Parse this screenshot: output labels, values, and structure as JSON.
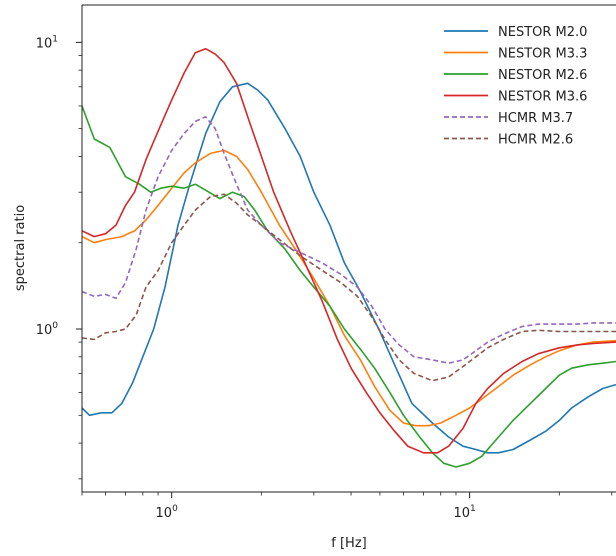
{
  "chart_data": {
    "type": "line",
    "title": "",
    "xlabel": "f [Hz]",
    "ylabel": "spectral ratio",
    "xscale": "log",
    "yscale": "log",
    "xlim": [
      0.5,
      31
    ],
    "ylim": [
      0.27,
      13.5
    ],
    "grid": false,
    "legend_position": "top-right",
    "x_ticks": [
      {
        "value": 1,
        "base": "10",
        "exp": "0"
      },
      {
        "value": 10,
        "base": "10",
        "exp": "1"
      }
    ],
    "y_ticks": [
      {
        "value": 1,
        "base": "10",
        "exp": "0"
      },
      {
        "value": 10,
        "base": "10",
        "exp": "1"
      }
    ],
    "series": [
      {
        "name": "NESTOR M2.0",
        "color": "#1f77b4",
        "dashed": false,
        "x": [
          0.5,
          0.53,
          0.58,
          0.63,
          0.68,
          0.74,
          0.8,
          0.87,
          0.95,
          1.05,
          1.15,
          1.3,
          1.45,
          1.6,
          1.8,
          1.95,
          2.1,
          2.4,
          2.7,
          3.0,
          3.4,
          3.8,
          4.3,
          5.0,
          5.7,
          6.4,
          7.5,
          8.5,
          9.5,
          10.5,
          11.5,
          12.5,
          14.0,
          16.0,
          18.0,
          20.0,
          22.0,
          25.0,
          28.0,
          31.0
        ],
        "y": [
          0.53,
          0.5,
          0.51,
          0.51,
          0.55,
          0.65,
          0.8,
          1.0,
          1.4,
          2.3,
          3.2,
          4.8,
          6.2,
          7.0,
          7.2,
          6.8,
          6.3,
          5.0,
          4.0,
          3.0,
          2.3,
          1.7,
          1.35,
          0.98,
          0.72,
          0.55,
          0.47,
          0.42,
          0.39,
          0.38,
          0.37,
          0.37,
          0.38,
          0.41,
          0.44,
          0.48,
          0.53,
          0.58,
          0.62,
          0.64
        ]
      },
      {
        "name": "NESTOR M3.3",
        "color": "#ff7f0e",
        "dashed": false,
        "x": [
          0.5,
          0.55,
          0.6,
          0.68,
          0.75,
          0.82,
          0.9,
          1.0,
          1.1,
          1.2,
          1.35,
          1.5,
          1.65,
          1.8,
          2.0,
          2.3,
          2.6,
          3.0,
          3.4,
          3.8,
          4.3,
          4.8,
          5.4,
          6.0,
          6.6,
          7.3,
          8.0,
          9.0,
          10.0,
          11.0,
          12.5,
          14.0,
          16.0,
          18.0,
          20.0,
          23.0,
          26.0,
          31.0
        ],
        "y": [
          2.1,
          2.0,
          2.05,
          2.1,
          2.2,
          2.4,
          2.7,
          3.1,
          3.5,
          3.8,
          4.1,
          4.2,
          4.0,
          3.6,
          3.0,
          2.3,
          1.9,
          1.5,
          1.2,
          0.95,
          0.78,
          0.63,
          0.52,
          0.47,
          0.46,
          0.46,
          0.47,
          0.5,
          0.53,
          0.57,
          0.63,
          0.69,
          0.75,
          0.8,
          0.84,
          0.88,
          0.9,
          0.91
        ]
      },
      {
        "name": "NESTOR M2.6",
        "color": "#2ca02c",
        "dashed": false,
        "x": [
          0.5,
          0.55,
          0.62,
          0.7,
          0.78,
          0.85,
          0.92,
          1.0,
          1.1,
          1.2,
          1.3,
          1.45,
          1.6,
          1.75,
          1.9,
          2.1,
          2.4,
          2.7,
          3.0,
          3.4,
          3.8,
          4.3,
          4.8,
          5.4,
          6.0,
          6.8,
          7.5,
          8.2,
          9.0,
          10.0,
          11.0,
          12.5,
          14.0,
          16.0,
          18.0,
          20.0,
          22.0,
          25.0,
          28.0,
          31.0
        ],
        "y": [
          6.0,
          4.6,
          4.3,
          3.4,
          3.2,
          3.0,
          3.1,
          3.15,
          3.1,
          3.2,
          3.05,
          2.85,
          3.0,
          2.9,
          2.6,
          2.2,
          1.9,
          1.6,
          1.4,
          1.2,
          1.0,
          0.85,
          0.73,
          0.6,
          0.5,
          0.42,
          0.37,
          0.34,
          0.33,
          0.34,
          0.36,
          0.42,
          0.48,
          0.55,
          0.62,
          0.69,
          0.73,
          0.75,
          0.76,
          0.77
        ]
      },
      {
        "name": "NESTOR M3.6",
        "color": "#d62728",
        "dashed": false,
        "x": [
          0.5,
          0.55,
          0.6,
          0.65,
          0.7,
          0.75,
          0.82,
          0.9,
          1.0,
          1.1,
          1.2,
          1.3,
          1.4,
          1.5,
          1.65,
          1.8,
          2.0,
          2.2,
          2.5,
          2.8,
          3.2,
          3.6,
          4.0,
          4.5,
          5.0,
          5.6,
          6.2,
          7.0,
          7.8,
          8.5,
          9.5,
          10.5,
          11.5,
          13.0,
          15.0,
          17.0,
          20.0,
          23.0,
          26.0,
          31.0
        ],
        "y": [
          2.2,
          2.1,
          2.15,
          2.3,
          2.7,
          3.0,
          3.9,
          4.9,
          6.3,
          7.8,
          9.2,
          9.5,
          9.1,
          8.5,
          7.2,
          5.5,
          4.0,
          3.0,
          2.2,
          1.7,
          1.25,
          0.92,
          0.73,
          0.6,
          0.51,
          0.44,
          0.39,
          0.37,
          0.37,
          0.39,
          0.45,
          0.55,
          0.62,
          0.7,
          0.77,
          0.82,
          0.86,
          0.88,
          0.89,
          0.9
        ]
      },
      {
        "name": "HCMR M3.7",
        "color": "#9467bd",
        "dashed": true,
        "x": [
          0.5,
          0.55,
          0.6,
          0.65,
          0.7,
          0.76,
          0.82,
          0.9,
          1.0,
          1.1,
          1.2,
          1.3,
          1.4,
          1.5,
          1.65,
          1.8,
          2.0,
          2.3,
          2.7,
          3.2,
          3.7,
          4.2,
          4.7,
          5.2,
          5.8,
          6.5,
          7.5,
          8.5,
          9.5,
          10.5,
          11.5,
          13.0,
          15.0,
          17.0,
          20.0,
          23.0,
          26.0,
          31.0
        ],
        "y": [
          1.35,
          1.3,
          1.32,
          1.28,
          1.45,
          1.9,
          2.6,
          3.4,
          4.2,
          4.8,
          5.3,
          5.5,
          5.0,
          4.1,
          3.2,
          2.6,
          2.3,
          2.0,
          1.85,
          1.7,
          1.55,
          1.4,
          1.2,
          1.0,
          0.88,
          0.8,
          0.78,
          0.76,
          0.78,
          0.84,
          0.9,
          0.96,
          1.02,
          1.04,
          1.04,
          1.04,
          1.05,
          1.05
        ]
      },
      {
        "name": "HCMR M2.6",
        "color": "#8c564b",
        "dashed": true,
        "x": [
          0.5,
          0.55,
          0.6,
          0.65,
          0.7,
          0.76,
          0.82,
          0.9,
          1.0,
          1.1,
          1.2,
          1.35,
          1.5,
          1.65,
          1.8,
          2.0,
          2.3,
          2.7,
          3.2,
          3.7,
          4.2,
          4.7,
          5.2,
          5.8,
          6.5,
          7.5,
          8.5,
          9.5,
          10.5,
          11.5,
          13.0,
          15.0,
          17.0,
          20.0,
          23.0,
          26.0,
          31.0
        ],
        "y": [
          0.93,
          0.92,
          0.97,
          0.98,
          1.0,
          1.12,
          1.4,
          1.6,
          2.0,
          2.3,
          2.6,
          2.9,
          2.95,
          2.75,
          2.5,
          2.3,
          2.05,
          1.8,
          1.6,
          1.45,
          1.3,
          1.1,
          0.92,
          0.78,
          0.7,
          0.66,
          0.68,
          0.74,
          0.8,
          0.86,
          0.92,
          0.98,
          0.99,
          0.98,
          0.98,
          0.98,
          0.98
        ]
      }
    ]
  }
}
